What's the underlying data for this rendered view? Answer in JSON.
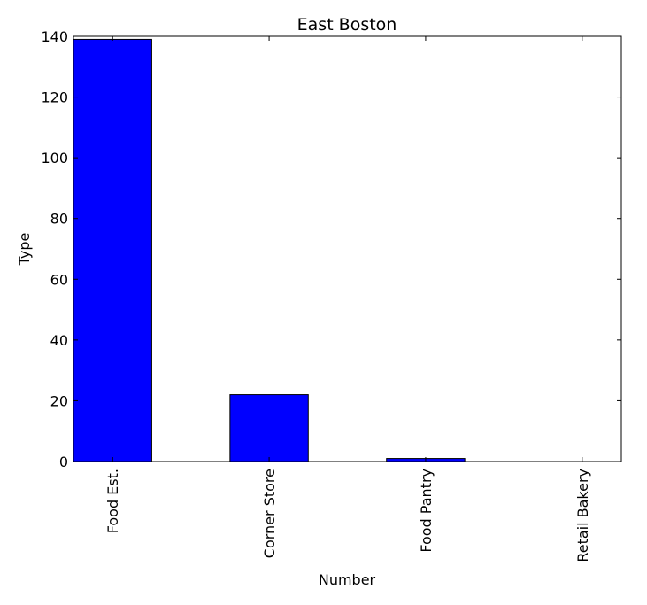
{
  "chart_data": {
    "type": "bar",
    "title": "East Boston",
    "xlabel": "Number",
    "ylabel": "Type",
    "categories": [
      "Food Est.",
      "Corner Store",
      "Food Pantry",
      "Retail Bakery"
    ],
    "values": [
      139,
      22,
      1,
      0
    ],
    "ylim": [
      0,
      140
    ],
    "yticks": [
      0,
      20,
      40,
      60,
      80,
      100,
      120,
      140
    ],
    "bar_color": "#0000ff",
    "edge_color": "#000000",
    "grid": false,
    "legend": "none"
  }
}
